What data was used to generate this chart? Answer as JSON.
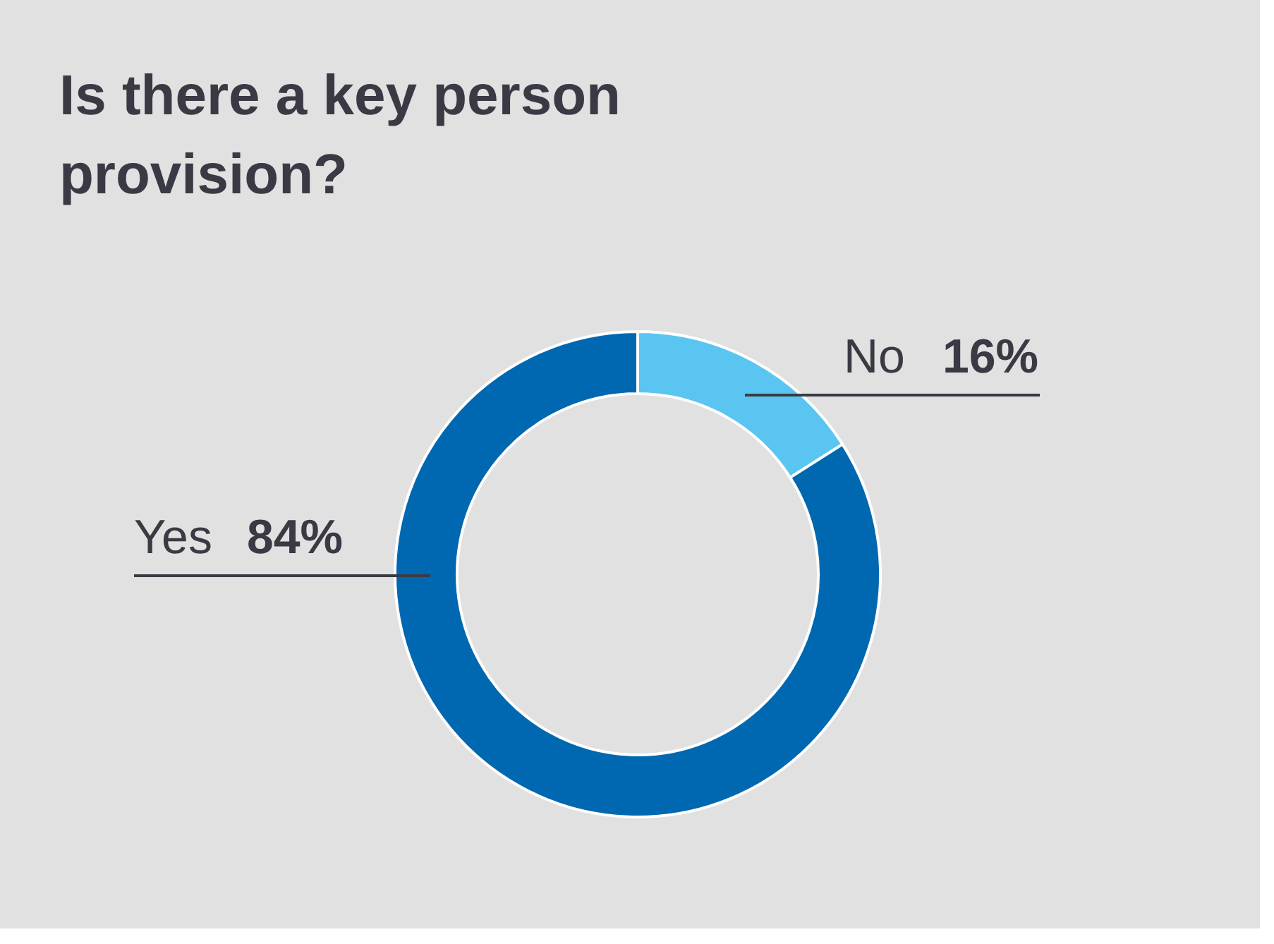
{
  "chart_data": {
    "type": "donut",
    "title": "Is there a key person provision?",
    "categories": [
      "No",
      "Yes"
    ],
    "values": [
      16,
      84
    ],
    "colors": [
      "#5bc5f2",
      "#0068b1"
    ],
    "value_labels": [
      "16%",
      "84%"
    ]
  }
}
